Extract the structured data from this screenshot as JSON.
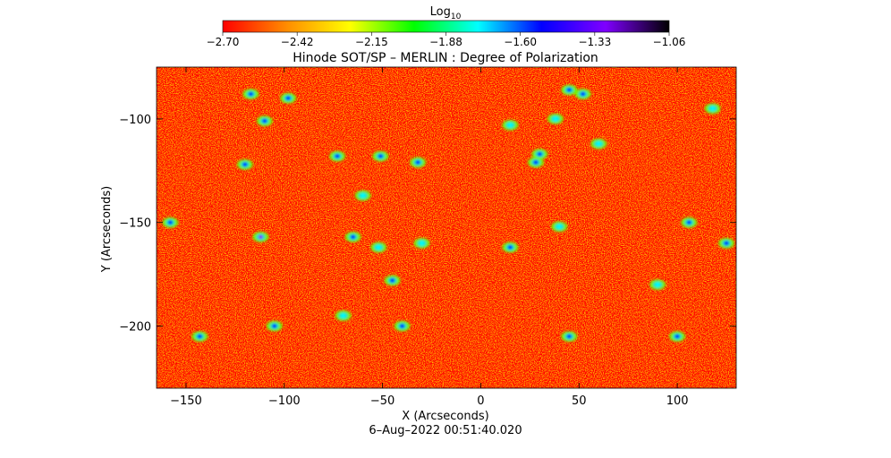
{
  "chart_data": {
    "type": "heatmap",
    "title": "Hinode SOT/SP – MERLIN : Degree of Polarization",
    "xlabel": "X (Arcseconds)",
    "ylabel": "Y (Arcseconds)",
    "timestamp": "6–Aug–2022 00:51:40.020",
    "colorbar": {
      "label_base": "Log",
      "label_sub": "10",
      "min": -2.7,
      "max": -1.06,
      "ticks": [
        "−2.70",
        "−2.42",
        "−2.15",
        "−1.88",
        "−1.60",
        "−1.33",
        "−1.06"
      ],
      "colormap": [
        "#ff0000",
        "#ff8c00",
        "#ffff00",
        "#00ff00",
        "#00ffff",
        "#0000ff",
        "#7f00ff",
        "#000000"
      ]
    },
    "xlim": [
      -165,
      130
    ],
    "ylim": [
      -230,
      -75
    ],
    "xticks": [
      {
        "value": -150,
        "label": "−150"
      },
      {
        "value": -100,
        "label": "−100"
      },
      {
        "value": -50,
        "label": "−50"
      },
      {
        "value": 0,
        "label": "0"
      },
      {
        "value": 50,
        "label": "50"
      },
      {
        "value": 100,
        "label": "100"
      }
    ],
    "yticks": [
      {
        "value": -100,
        "label": "−100"
      },
      {
        "value": -150,
        "label": "−150"
      },
      {
        "value": -200,
        "label": "−200"
      }
    ],
    "background_log10": -2.55,
    "features": [
      {
        "x": -117,
        "y": -88,
        "log10": -1.5
      },
      {
        "x": -98,
        "y": -90,
        "log10": -1.6
      },
      {
        "x": -110,
        "y": -101,
        "log10": -1.6
      },
      {
        "x": -120,
        "y": -122,
        "log10": -1.45
      },
      {
        "x": -73,
        "y": -118,
        "log10": -1.5
      },
      {
        "x": -51,
        "y": -118,
        "log10": -1.55
      },
      {
        "x": -32,
        "y": -121,
        "log10": -1.45
      },
      {
        "x": -60,
        "y": -137,
        "log10": -1.7
      },
      {
        "x": -158,
        "y": -150,
        "log10": -1.45
      },
      {
        "x": -112,
        "y": -157,
        "log10": -1.4
      },
      {
        "x": -65,
        "y": -157,
        "log10": -1.6
      },
      {
        "x": -52,
        "y": -162,
        "log10": -1.65
      },
      {
        "x": -45,
        "y": -178,
        "log10": -1.5
      },
      {
        "x": -30,
        "y": -160,
        "log10": -1.7
      },
      {
        "x": -143,
        "y": -205,
        "log10": -1.6
      },
      {
        "x": -105,
        "y": -200,
        "log10": -1.6
      },
      {
        "x": -70,
        "y": -195,
        "log10": -1.7
      },
      {
        "x": -40,
        "y": -200,
        "log10": -1.6
      },
      {
        "x": 15,
        "y": -103,
        "log10": -1.7
      },
      {
        "x": 28,
        "y": -121,
        "log10": -1.45
      },
      {
        "x": 30,
        "y": -117,
        "log10": -1.5
      },
      {
        "x": 38,
        "y": -100,
        "log10": -1.7
      },
      {
        "x": 45,
        "y": -86,
        "log10": -1.45
      },
      {
        "x": 52,
        "y": -88,
        "log10": -1.5
      },
      {
        "x": 60,
        "y": -112,
        "log10": -1.7
      },
      {
        "x": 15,
        "y": -162,
        "log10": -1.5
      },
      {
        "x": 40,
        "y": -152,
        "log10": -1.7
      },
      {
        "x": 45,
        "y": -205,
        "log10": -1.6
      },
      {
        "x": 100,
        "y": -205,
        "log10": -1.6
      },
      {
        "x": 106,
        "y": -150,
        "log10": -1.55
      },
      {
        "x": 125,
        "y": -160,
        "log10": -1.5
      },
      {
        "x": 118,
        "y": -95,
        "log10": -1.7
      },
      {
        "x": 90,
        "y": -180,
        "log10": -1.7
      }
    ]
  }
}
